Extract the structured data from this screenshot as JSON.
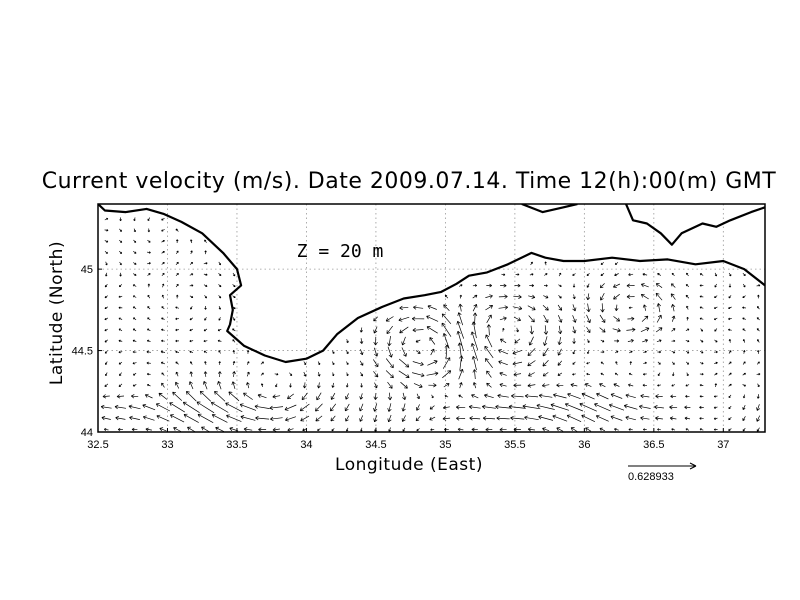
{
  "chart_data": {
    "type": "vector-field",
    "title": "Current velocity (m/s). Date 2009.07.14. Time 12(h):00(m) GMT",
    "xlabel": "Longitude (East)",
    "ylabel": "Latitude (North)",
    "xlim": [
      32.5,
      37.3
    ],
    "ylim": [
      44.0,
      45.4
    ],
    "xticks": [
      32.5,
      33,
      33.5,
      34,
      34.5,
      35,
      35.5,
      36,
      36.5,
      37
    ],
    "xtick_labels": [
      "32.5",
      "33",
      "33.5",
      "34",
      "34.5",
      "35",
      "35.5",
      "36",
      "36.5",
      "37"
    ],
    "yticks": [
      44,
      44.5,
      45
    ],
    "ytick_labels": [
      "44",
      "44.5",
      "45"
    ],
    "grid": true,
    "annotation": "Z = 20 m",
    "reference_vector_label": "0.628933",
    "reference_vector_value": 0.628933,
    "coastline": [
      [
        32.5,
        45.4
      ],
      [
        32.55,
        45.36
      ],
      [
        32.7,
        45.35
      ],
      [
        32.85,
        45.37
      ],
      [
        32.97,
        45.34
      ],
      [
        33.1,
        45.29
      ],
      [
        33.25,
        45.22
      ],
      [
        33.4,
        45.1
      ],
      [
        33.5,
        45.0
      ],
      [
        33.53,
        44.9
      ],
      [
        33.45,
        44.84
      ],
      [
        33.47,
        44.75
      ],
      [
        33.45,
        44.66
      ],
      [
        33.43,
        44.62
      ],
      [
        33.55,
        44.53
      ],
      [
        33.7,
        44.47
      ],
      [
        33.85,
        44.43
      ],
      [
        34.0,
        44.45
      ],
      [
        34.12,
        44.5
      ],
      [
        34.22,
        44.6
      ],
      [
        34.37,
        44.7
      ],
      [
        34.55,
        44.77
      ],
      [
        34.7,
        44.82
      ],
      [
        34.85,
        44.84
      ],
      [
        34.97,
        44.86
      ],
      [
        35.08,
        44.91
      ],
      [
        35.17,
        44.96
      ],
      [
        35.3,
        44.98
      ],
      [
        35.45,
        45.03
      ],
      [
        35.62,
        45.1
      ],
      [
        35.72,
        45.07
      ],
      [
        35.85,
        45.05
      ],
      [
        36.0,
        45.05
      ],
      [
        36.2,
        45.07
      ],
      [
        36.4,
        45.05
      ],
      [
        36.6,
        45.06
      ],
      [
        36.8,
        45.03
      ],
      [
        37.0,
        45.05
      ],
      [
        37.15,
        45.0
      ],
      [
        37.3,
        44.9
      ]
    ],
    "north_coast_segments": [
      [
        [
          35.55,
          45.4
        ],
        [
          35.7,
          45.35
        ],
        [
          35.85,
          45.38
        ],
        [
          35.95,
          45.4
        ]
      ],
      [
        [
          36.3,
          45.4
        ],
        [
          36.35,
          45.3
        ],
        [
          36.45,
          45.28
        ],
        [
          36.55,
          45.22
        ],
        [
          36.63,
          45.15
        ],
        [
          36.7,
          45.22
        ],
        [
          36.85,
          45.28
        ],
        [
          36.95,
          45.26
        ],
        [
          37.05,
          45.3
        ],
        [
          37.2,
          45.35
        ],
        [
          37.3,
          45.38
        ]
      ]
    ]
  }
}
